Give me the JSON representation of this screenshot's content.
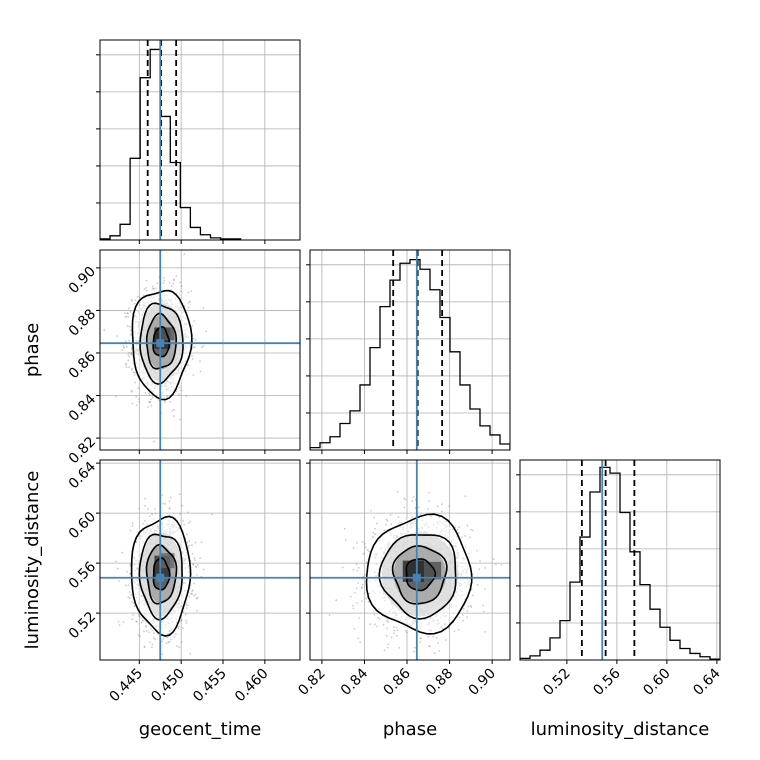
{
  "chart_data": {
    "type": "corner",
    "parameters": [
      "geocent_time",
      "phase",
      "luminosity_distance"
    ],
    "axis_labels": {
      "geocent_time": "geocent_time",
      "phase": "phase",
      "luminosity_distance": "luminosity_distance"
    },
    "ranges": {
      "geocent_time": [
        0.4403,
        0.4642
      ],
      "phase": [
        0.8144,
        0.9084
      ],
      "luminosity_distance": [
        0.4825,
        0.6425
      ]
    },
    "ticks": {
      "geocent_time": [
        0.445,
        0.45,
        0.455,
        0.46
      ],
      "phase": [
        0.82,
        0.84,
        0.86,
        0.88,
        0.9
      ],
      "luminosity_distance": [
        0.52,
        0.56,
        0.6,
        0.64
      ]
    },
    "tick_labels": {
      "geocent_time": [
        "0.445",
        "0.450",
        "0.455",
        "0.460"
      ],
      "phase": [
        "0.82",
        "0.84",
        "0.86",
        "0.88",
        "0.90"
      ],
      "luminosity_distance": [
        "0.52",
        "0.56",
        "0.60",
        "0.64"
      ]
    },
    "truths": {
      "geocent_time": 0.4475,
      "phase": 0.8646,
      "luminosity_distance": 0.5483
    },
    "quantiles": {
      "geocent_time": [
        0.446,
        0.4476,
        0.4494
      ],
      "phase": [
        0.8535,
        0.865,
        0.8765
      ],
      "luminosity_distance": [
        0.532,
        0.551,
        0.574
      ]
    },
    "histograms": {
      "geocent_time": {
        "bin_edges": [
          0.4403,
          0.4415,
          0.4427,
          0.4439,
          0.4451,
          0.4463,
          0.4475,
          0.4487,
          0.4499,
          0.4511,
          0.4523,
          0.4535,
          0.4547,
          0.4559,
          0.4571
        ],
        "counts": [
          1,
          4,
          15,
          78,
          155,
          182,
          118,
          74,
          31,
          12,
          5,
          2,
          1,
          1
        ]
      },
      "phase": {
        "bin_edges": [
          0.8144,
          0.8191,
          0.8238,
          0.8285,
          0.8332,
          0.8379,
          0.8426,
          0.8473,
          0.852,
          0.8567,
          0.8614,
          0.8661,
          0.8708,
          0.8755,
          0.8802,
          0.8849,
          0.8896,
          0.8943,
          0.899,
          0.9037,
          0.9084
        ],
        "counts": [
          4,
          12,
          22,
          44,
          65,
          108,
          170,
          238,
          282,
          310,
          316,
          300,
          266,
          220,
          163,
          108,
          68,
          40,
          25,
          10
        ]
      },
      "luminosity_distance": {
        "bin_edges": [
          0.4825,
          0.4905,
          0.4985,
          0.5065,
          0.5145,
          0.5225,
          0.5305,
          0.5385,
          0.5465,
          0.5545,
          0.5625,
          0.5705,
          0.5785,
          0.5865,
          0.5945,
          0.6025,
          0.6105,
          0.6185,
          0.6265,
          0.6345,
          0.6425
        ],
        "counts": [
          2,
          5,
          12,
          27,
          48,
          95,
          150,
          205,
          235,
          228,
          180,
          132,
          92,
          62,
          40,
          24,
          14,
          8,
          4,
          1
        ]
      }
    },
    "hist_ylim": {
      "geocent_time": [
        0,
        191
      ],
      "phase": [
        0,
        332
      ],
      "luminosity_distance": [
        0,
        244
      ]
    },
    "pairs": [
      {
        "x": "geocent_time",
        "y": "phase",
        "center": [
          0.4476,
          0.865
        ],
        "sigma": [
          0.0016,
          0.0115
        ],
        "contour_sigmas": [
          0.6,
          1.1,
          1.6,
          2.2
        ],
        "contour_levels": [
          0.18,
          0.39,
          0.68,
          0.86
        ],
        "shading": [
          {
            "x": 0.4468,
            "y": 0.862,
            "w": 0.0019,
            "h": 0.01,
            "level": 0.85
          },
          {
            "x": 0.4476,
            "y": 0.866,
            "w": 0.0016,
            "h": 0.006,
            "level": 0.65
          }
        ]
      },
      {
        "x": "geocent_time",
        "y": "luminosity_distance",
        "center": [
          0.4476,
          0.551
        ],
        "sigma": [
          0.0016,
          0.021
        ],
        "contour_sigmas": [
          0.6,
          1.1,
          1.6,
          2.2
        ],
        "contour_levels": [
          0.18,
          0.39,
          0.68,
          0.86
        ],
        "shading": [
          {
            "x": 0.4468,
            "y": 0.548,
            "w": 0.0019,
            "h": 0.018,
            "level": 0.8
          },
          {
            "x": 0.4476,
            "y": 0.556,
            "w": 0.0016,
            "h": 0.012,
            "level": 0.6
          }
        ]
      },
      {
        "x": "phase",
        "y": "luminosity_distance",
        "center": [
          0.866,
          0.551
        ],
        "sigma": [
          0.0112,
          0.021
        ],
        "contour_sigmas": [
          0.6,
          1.1,
          1.6,
          2.2
        ],
        "contour_levels": [
          0.18,
          0.39,
          0.68,
          0.86
        ],
        "shading": [
          {
            "x": 0.858,
            "y": 0.545,
            "w": 0.01,
            "h": 0.017,
            "level": 0.85
          },
          {
            "x": 0.868,
            "y": 0.547,
            "w": 0.008,
            "h": 0.014,
            "level": 0.7
          }
        ]
      }
    ],
    "colors": {
      "truth": "#4682b4",
      "histogram": "#000000",
      "contour": "#000000",
      "scatter": "#8c8c8c",
      "grid": "#b0b0b0"
    },
    "grid": true,
    "legend": "none"
  }
}
